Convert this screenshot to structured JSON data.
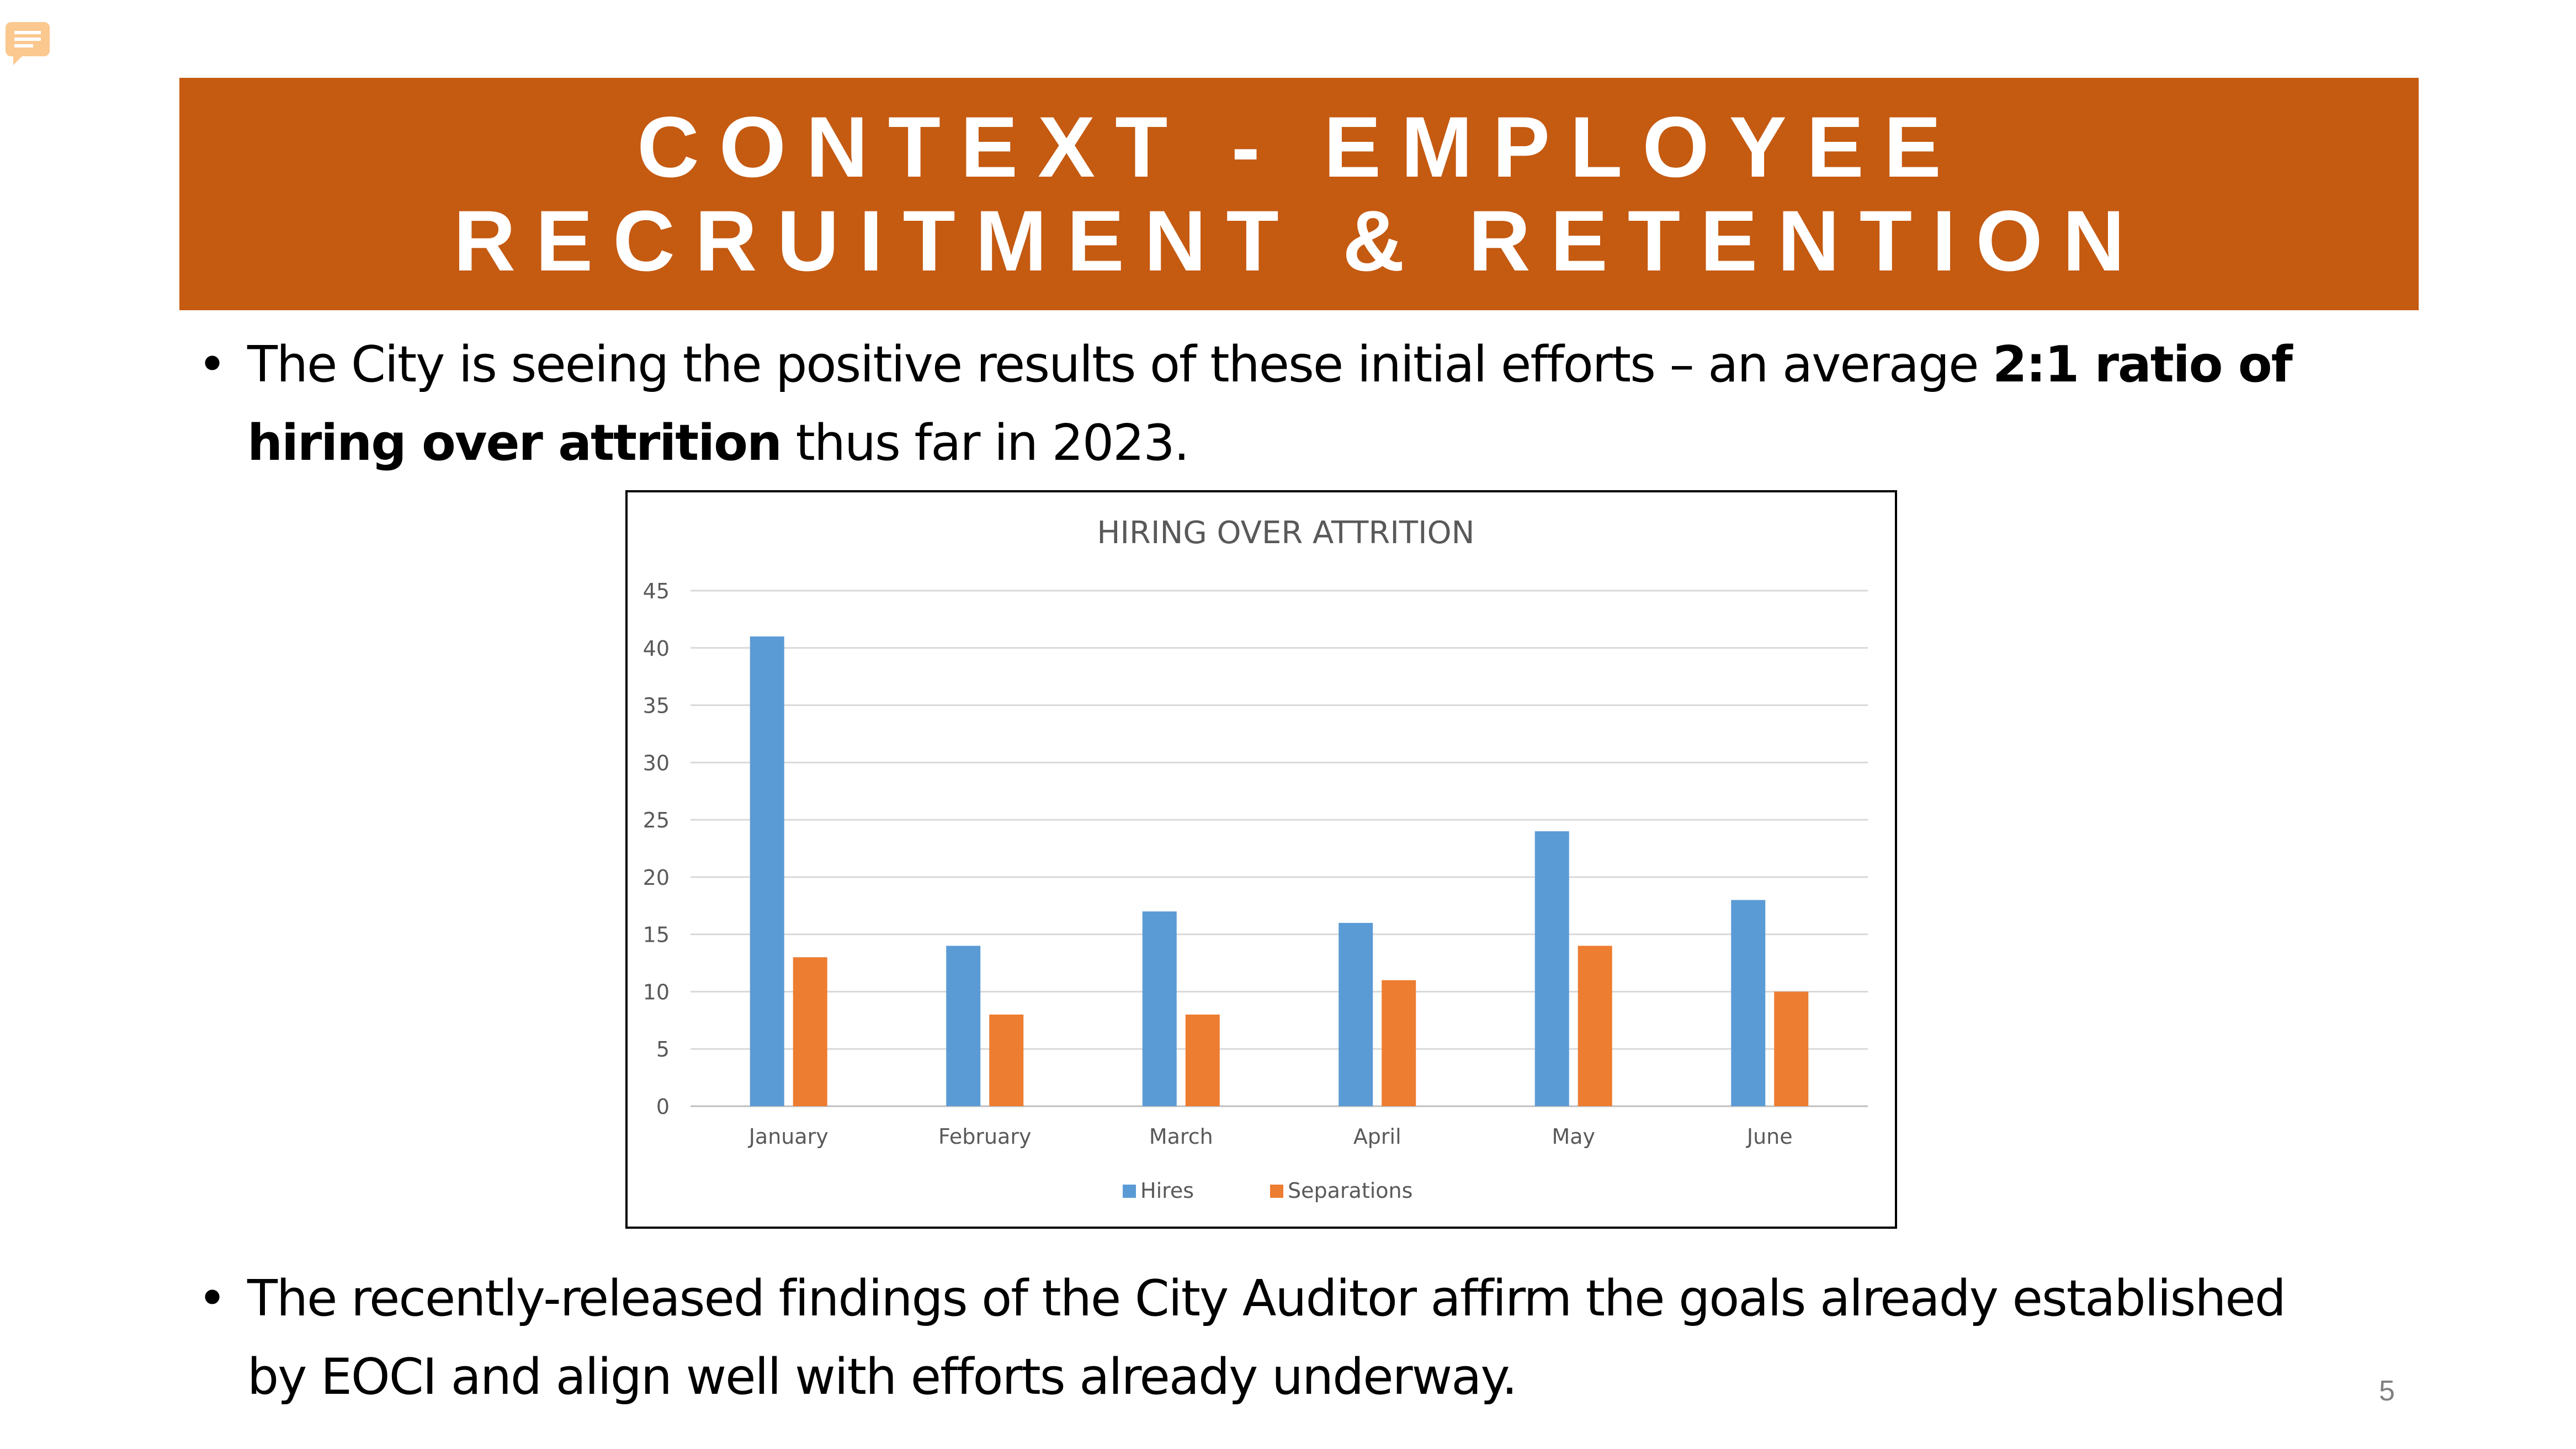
{
  "slide": {
    "title_line1": "CONTEXT - EMPLOYEE",
    "title_line2": "RECRUITMENT & RETENTION",
    "bullet_symbol": "•",
    "bullet1_part1": "The City is seeing the positive results of these initial efforts – an average ",
    "bullet1_bold": "2:1 ratio of hiring over attrition",
    "bullet1_part2": " thus far in 2023.",
    "bullet2": "The recently-released findings of the City Auditor affirm the goals already established by EOCI and align well with efforts already underway.",
    "page_number": "5",
    "comment_icon": "comment-icon",
    "colors": {
      "title_bg": "#c55a11",
      "hires": "#5b9bd5",
      "separations": "#ed7d31",
      "grid": "#d9d9d9"
    }
  },
  "chart_data": {
    "type": "bar",
    "title": "HIRING OVER ATTRITION",
    "categories": [
      "January",
      "February",
      "March",
      "April",
      "May",
      "June"
    ],
    "series": [
      {
        "name": "Hires",
        "values": [
          41,
          14,
          17,
          16,
          24,
          18
        ]
      },
      {
        "name": "Separations",
        "values": [
          13,
          8,
          8,
          11,
          14,
          10
        ]
      }
    ],
    "ylim": [
      0,
      45
    ],
    "yticks": [
      0,
      5,
      10,
      15,
      20,
      25,
      30,
      35,
      40,
      45
    ],
    "grid": true,
    "legend_position": "bottom"
  }
}
